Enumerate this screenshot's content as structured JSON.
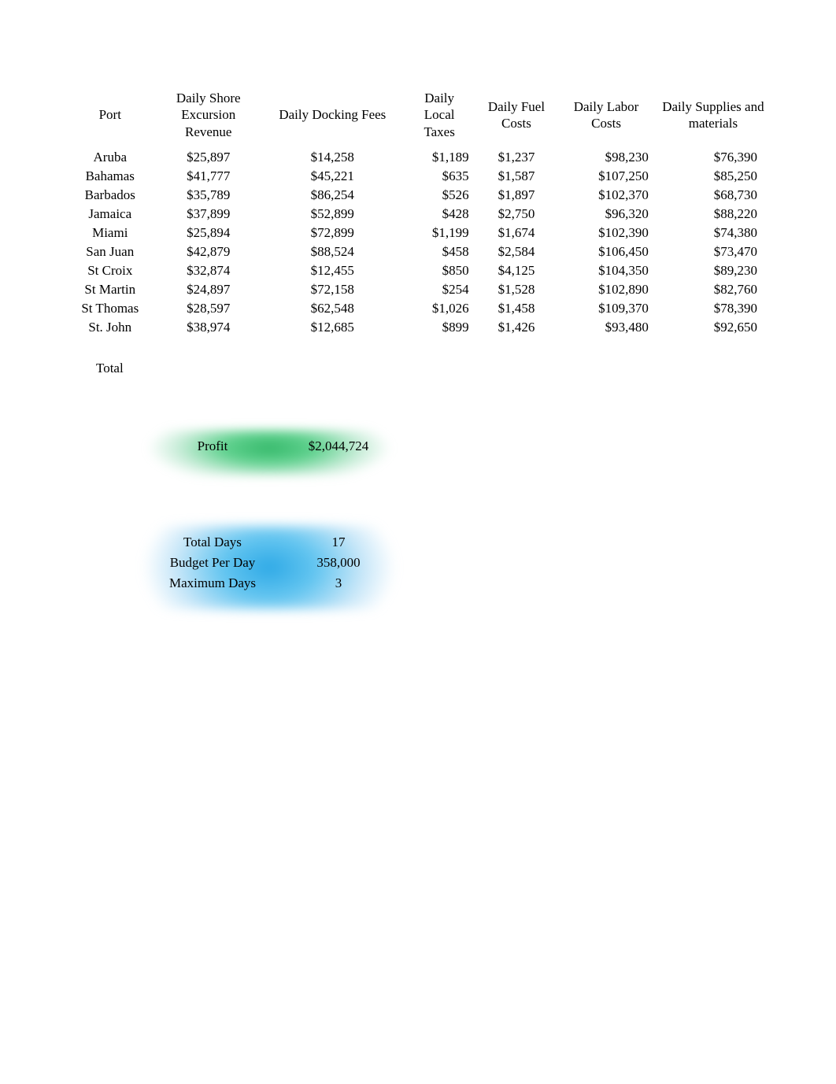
{
  "table": {
    "headers": {
      "port": "Port",
      "revenue": "Daily Shore Excursion Revenue",
      "docking": "Daily Docking Fees",
      "taxes": "Daily Local Taxes",
      "fuel": "Daily Fuel Costs",
      "labor": "Daily Labor Costs",
      "supplies": "Daily Supplies and materials"
    },
    "rows": [
      {
        "port": "Aruba",
        "revenue": "$25,897",
        "docking": "$14,258",
        "taxes": "$1,189",
        "fuel": "$1,237",
        "labor": "$98,230",
        "supplies": "$76,390"
      },
      {
        "port": "Bahamas",
        "revenue": "$41,777",
        "docking": "$45,221",
        "taxes": "$635",
        "fuel": "$1,587",
        "labor": "$107,250",
        "supplies": "$85,250"
      },
      {
        "port": "Barbados",
        "revenue": "$35,789",
        "docking": "$86,254",
        "taxes": "$526",
        "fuel": "$1,897",
        "labor": "$102,370",
        "supplies": "$68,730"
      },
      {
        "port": "Jamaica",
        "revenue": "$37,899",
        "docking": "$52,899",
        "taxes": "$428",
        "fuel": "$2,750",
        "labor": "$96,320",
        "supplies": "$88,220"
      },
      {
        "port": "Miami",
        "revenue": "$25,894",
        "docking": "$72,899",
        "taxes": "$1,199",
        "fuel": "$1,674",
        "labor": "$102,390",
        "supplies": "$74,380"
      },
      {
        "port": "San Juan",
        "revenue": "$42,879",
        "docking": "$88,524",
        "taxes": "$458",
        "fuel": "$2,584",
        "labor": "$106,450",
        "supplies": "$73,470"
      },
      {
        "port": "St Croix",
        "revenue": "$32,874",
        "docking": "$12,455",
        "taxes": "$850",
        "fuel": "$4,125",
        "labor": "$104,350",
        "supplies": "$89,230"
      },
      {
        "port": "St Martin",
        "revenue": "$24,897",
        "docking": "$72,158",
        "taxes": "$254",
        "fuel": "$1,528",
        "labor": "$102,890",
        "supplies": "$82,760"
      },
      {
        "port": "St Thomas",
        "revenue": "$28,597",
        "docking": "$62,548",
        "taxes": "$1,026",
        "fuel": "$1,458",
        "labor": "$109,370",
        "supplies": "$78,390"
      },
      {
        "port": "St. John",
        "revenue": "$38,974",
        "docking": "$12,685",
        "taxes": "$899",
        "fuel": "$1,426",
        "labor": "$93,480",
        "supplies": "$92,650"
      }
    ],
    "total_label": "Total"
  },
  "profit": {
    "label": "Profit",
    "value": "$2,044,724",
    "highlight_color": "#45c278"
  },
  "constraints": {
    "highlight_color": "#3fb4e8",
    "rows": [
      {
        "label": "Total Days",
        "value": "17"
      },
      {
        "label": "Budget Per Day",
        "value": "358,000"
      },
      {
        "label": "Maximum Days",
        "value": "3"
      }
    ]
  },
  "style": {
    "background_color": "#ffffff",
    "text_color": "#000000",
    "font_family": "Times New Roman",
    "font_size_pt": 13
  }
}
